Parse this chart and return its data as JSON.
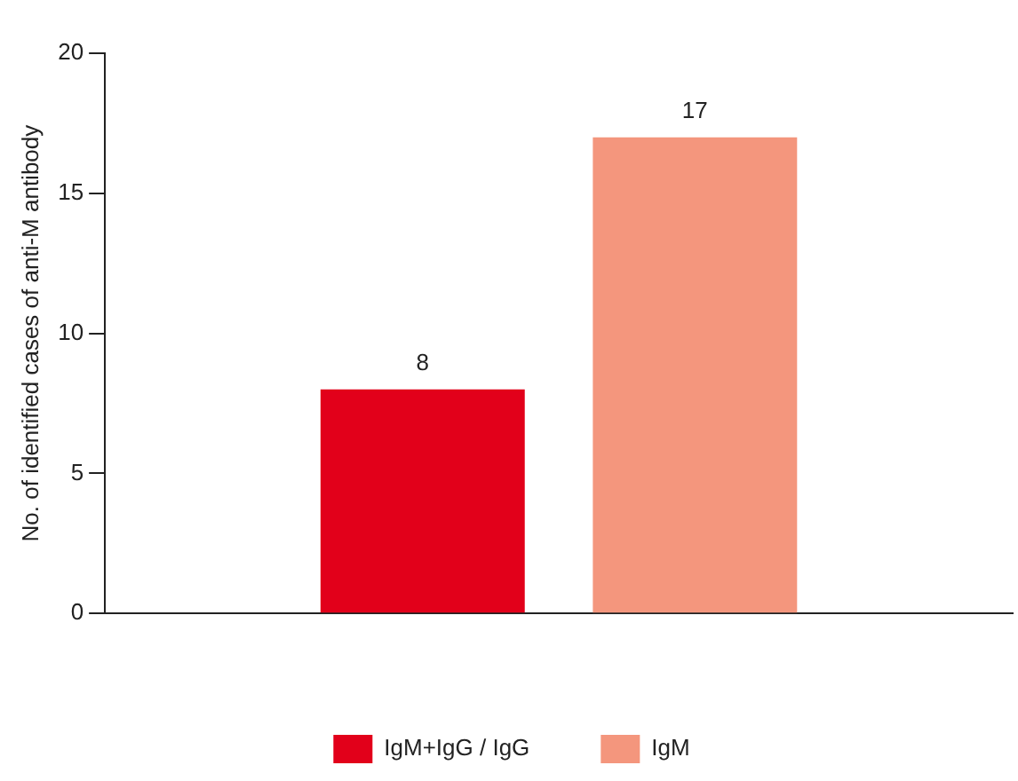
{
  "chart_data": {
    "type": "bar",
    "ylabel": "No. of identified cases of anti-M antibody",
    "categories": [
      null
    ],
    "series": [
      {
        "name": "IgM+IgG / IgG",
        "color": "#e2001a",
        "values": [
          8
        ]
      },
      {
        "name": "IgM",
        "color": "#f4967d",
        "values": [
          17
        ]
      }
    ],
    "ylim": [
      0,
      20
    ],
    "yticks": [
      0,
      5,
      10,
      15,
      20
    ],
    "grid": false,
    "legend": "bottom",
    "data_labels": true
  }
}
